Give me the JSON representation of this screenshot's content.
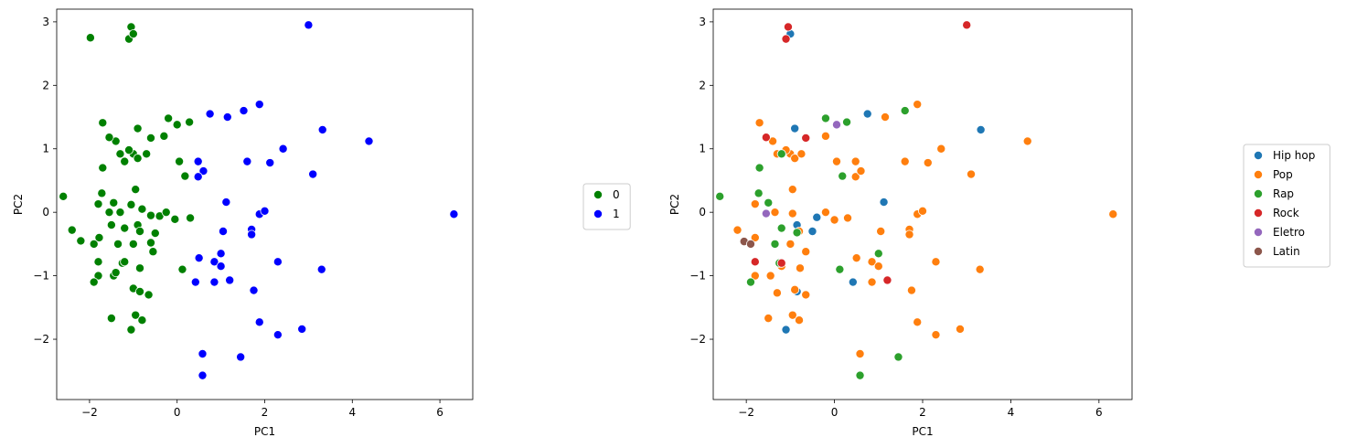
{
  "chart_data": [
    {
      "type": "scatter",
      "xlabel": "PC1",
      "ylabel": "PC2",
      "xlim": [
        -2.75,
        6.75
      ],
      "ylim": [
        -2.95,
        3.2
      ],
      "xticks": [
        -2,
        0,
        2,
        4,
        6
      ],
      "yticks": [
        -2,
        -1,
        0,
        1,
        2,
        3
      ],
      "legend": {
        "placement": "outside-right",
        "entries": [
          "0",
          "1"
        ]
      },
      "colors": {
        "0": "#008000",
        "1": "#0000ff"
      },
      "series": [
        {
          "name": "0",
          "points": [
            [
              -1.05,
              2.92
            ],
            [
              -1.98,
              2.75
            ],
            [
              -1.1,
              2.73
            ],
            [
              -1.0,
              2.81
            ],
            [
              -1.7,
              1.41
            ],
            [
              -1.4,
              1.12
            ],
            [
              -1.55,
              1.18
            ],
            [
              -0.9,
              1.32
            ],
            [
              -0.6,
              1.17
            ],
            [
              -0.3,
              1.2
            ],
            [
              -0.2,
              1.48
            ],
            [
              0.0,
              1.38
            ],
            [
              0.28,
              1.42
            ],
            [
              -1.2,
              0.8
            ],
            [
              -1.0,
              0.92
            ],
            [
              -1.1,
              0.98
            ],
            [
              -0.9,
              0.85
            ],
            [
              -1.3,
              0.92
            ],
            [
              -0.7,
              0.92
            ],
            [
              -1.7,
              0.7
            ],
            [
              0.05,
              0.8
            ],
            [
              0.18,
              0.57
            ],
            [
              -0.95,
              0.36
            ],
            [
              -1.72,
              0.3
            ],
            [
              -1.55,
              0.0
            ],
            [
              -1.45,
              0.15
            ],
            [
              -1.3,
              0.0
            ],
            [
              -1.8,
              0.13
            ],
            [
              -1.05,
              0.12
            ],
            [
              -0.8,
              0.05
            ],
            [
              -0.6,
              -0.05
            ],
            [
              -0.4,
              -0.06
            ],
            [
              -0.25,
              0.0
            ],
            [
              -0.05,
              -0.11
            ],
            [
              0.3,
              -0.09
            ],
            [
              -2.6,
              0.25
            ],
            [
              -2.4,
              -0.28
            ],
            [
              -2.2,
              -0.45
            ],
            [
              -1.9,
              -0.5
            ],
            [
              -1.78,
              -0.4
            ],
            [
              -1.5,
              -0.2
            ],
            [
              -1.2,
              -0.25
            ],
            [
              -1.0,
              -0.5
            ],
            [
              -0.9,
              -0.2
            ],
            [
              -0.85,
              -0.3
            ],
            [
              -1.35,
              -0.5
            ],
            [
              -0.6,
              -0.48
            ],
            [
              -0.5,
              -0.33
            ],
            [
              -0.55,
              -0.62
            ],
            [
              -1.25,
              -0.8
            ],
            [
              -1.45,
              -1.0
            ],
            [
              -1.4,
              -0.95
            ],
            [
              -1.2,
              -0.78
            ],
            [
              -0.85,
              -0.88
            ],
            [
              -1.8,
              -0.78
            ],
            [
              -1.8,
              -1.0
            ],
            [
              -1.9,
              -1.1
            ],
            [
              -1.0,
              -1.2
            ],
            [
              -0.85,
              -1.25
            ],
            [
              -0.65,
              -1.3
            ],
            [
              0.12,
              -0.9
            ],
            [
              -1.5,
              -1.67
            ],
            [
              -1.05,
              -1.85
            ],
            [
              -0.95,
              -1.62
            ],
            [
              -0.8,
              -1.7
            ]
          ]
        },
        {
          "name": "1",
          "points": [
            [
              3.0,
              2.95
            ],
            [
              0.75,
              1.55
            ],
            [
              1.15,
              1.5
            ],
            [
              1.52,
              1.6
            ],
            [
              1.88,
              1.7
            ],
            [
              3.32,
              1.3
            ],
            [
              4.38,
              1.12
            ],
            [
              2.42,
              1.0
            ],
            [
              2.12,
              0.78
            ],
            [
              1.6,
              0.8
            ],
            [
              3.1,
              0.6
            ],
            [
              0.6,
              0.65
            ],
            [
              0.48,
              0.8
            ],
            [
              0.48,
              0.56
            ],
            [
              1.12,
              0.16
            ],
            [
              6.32,
              -0.03
            ],
            [
              1.88,
              -0.03
            ],
            [
              2.0,
              0.02
            ],
            [
              1.05,
              -0.3
            ],
            [
              1.7,
              -0.27
            ],
            [
              1.7,
              -0.35
            ],
            [
              0.5,
              -0.72
            ],
            [
              0.85,
              -0.78
            ],
            [
              1.0,
              -0.65
            ],
            [
              1.0,
              -0.85
            ],
            [
              2.3,
              -0.78
            ],
            [
              3.3,
              -0.9
            ],
            [
              0.42,
              -1.1
            ],
            [
              0.85,
              -1.1
            ],
            [
              1.2,
              -1.07
            ],
            [
              1.75,
              -1.23
            ],
            [
              1.88,
              -1.73
            ],
            [
              2.85,
              -1.84
            ],
            [
              2.3,
              -1.93
            ],
            [
              0.58,
              -2.23
            ],
            [
              1.45,
              -2.28
            ],
            [
              0.58,
              -2.57
            ]
          ]
        }
      ]
    },
    {
      "type": "scatter",
      "xlabel": "PC1",
      "ylabel": "PC2",
      "xlim": [
        -2.75,
        6.75
      ],
      "ylim": [
        -2.95,
        3.2
      ],
      "xticks": [
        -2,
        0,
        2,
        4,
        6
      ],
      "yticks": [
        -2,
        -1,
        0,
        1,
        2,
        3
      ],
      "legend": {
        "placement": "outside-right",
        "entries": [
          "Hip hop",
          "Pop",
          "Rap",
          "Rock",
          "Eletro",
          "Latin"
        ]
      },
      "colors": {
        "Hip hop": "#1f77b4",
        "Pop": "#ff7f0e",
        "Rap": "#2ca02c",
        "Rock": "#d62728",
        "Eletro": "#9467bd",
        "Latin": "#8c564b"
      },
      "series": [
        {
          "name": "Hip hop",
          "points": [
            [
              -1.0,
              2.81
            ],
            [
              -0.9,
              1.32
            ],
            [
              0.75,
              1.55
            ],
            [
              3.32,
              1.3
            ],
            [
              1.12,
              0.16
            ],
            [
              -0.85,
              -0.2
            ],
            [
              -0.5,
              -0.3
            ],
            [
              -0.4,
              -0.08
            ],
            [
              0.42,
              -1.1
            ],
            [
              -0.85,
              -1.25
            ],
            [
              -1.1,
              -1.85
            ]
          ]
        },
        {
          "name": "Pop",
          "points": [
            [
              -1.7,
              1.41
            ],
            [
              -1.4,
              1.12
            ],
            [
              -0.2,
              1.2
            ],
            [
              1.15,
              1.5
            ],
            [
              1.88,
              1.7
            ],
            [
              4.38,
              1.12
            ],
            [
              2.42,
              1.0
            ],
            [
              -1.3,
              0.92
            ],
            [
              -1.0,
              0.92
            ],
            [
              -0.9,
              0.85
            ],
            [
              -1.1,
              0.98
            ],
            [
              -0.75,
              0.92
            ],
            [
              0.05,
              0.8
            ],
            [
              0.48,
              0.8
            ],
            [
              0.48,
              0.56
            ],
            [
              0.6,
              0.65
            ],
            [
              1.6,
              0.8
            ],
            [
              2.12,
              0.78
            ],
            [
              3.1,
              0.6
            ],
            [
              -0.95,
              0.36
            ],
            [
              -1.8,
              0.13
            ],
            [
              -1.35,
              0.0
            ],
            [
              -0.95,
              -0.02
            ],
            [
              -0.2,
              0.0
            ],
            [
              0.0,
              -0.12
            ],
            [
              0.3,
              -0.09
            ],
            [
              1.88,
              -0.03
            ],
            [
              2.0,
              0.02
            ],
            [
              6.32,
              -0.03
            ],
            [
              -2.2,
              -0.28
            ],
            [
              -1.8,
              -0.4
            ],
            [
              -1.0,
              -0.5
            ],
            [
              -1.2,
              -0.25
            ],
            [
              -0.65,
              -0.62
            ],
            [
              -0.8,
              -0.3
            ],
            [
              1.05,
              -0.3
            ],
            [
              1.7,
              -0.27
            ],
            [
              1.7,
              -0.35
            ],
            [
              -1.8,
              -1.0
            ],
            [
              -1.45,
              -1.0
            ],
            [
              -1.3,
              -1.27
            ],
            [
              -1.2,
              -0.85
            ],
            [
              -0.78,
              -0.88
            ],
            [
              -0.65,
              -1.3
            ],
            [
              -0.9,
              -1.22
            ],
            [
              0.5,
              -0.72
            ],
            [
              0.85,
              -0.78
            ],
            [
              1.0,
              -0.85
            ],
            [
              2.3,
              -0.78
            ],
            [
              3.3,
              -0.9
            ],
            [
              0.85,
              -1.1
            ],
            [
              1.75,
              -1.23
            ],
            [
              -1.5,
              -1.67
            ],
            [
              -0.95,
              -1.62
            ],
            [
              -0.8,
              -1.7
            ],
            [
              1.88,
              -1.73
            ],
            [
              2.85,
              -1.84
            ],
            [
              2.3,
              -1.93
            ],
            [
              0.58,
              -2.23
            ]
          ]
        },
        {
          "name": "Rap",
          "points": [
            [
              -0.2,
              1.48
            ],
            [
              0.28,
              1.42
            ],
            [
              1.6,
              1.6
            ],
            [
              -1.2,
              0.92
            ],
            [
              -1.7,
              0.7
            ],
            [
              0.18,
              0.57
            ],
            [
              -1.72,
              0.3
            ],
            [
              -1.5,
              0.15
            ],
            [
              -2.6,
              0.25
            ],
            [
              -1.2,
              -0.25
            ],
            [
              -1.35,
              -0.5
            ],
            [
              -0.85,
              -0.32
            ],
            [
              1.0,
              -0.65
            ],
            [
              0.12,
              -0.9
            ],
            [
              -1.9,
              -1.1
            ],
            [
              -1.25,
              -0.8
            ],
            [
              1.45,
              -2.28
            ],
            [
              0.58,
              -2.57
            ]
          ]
        },
        {
          "name": "Rock",
          "points": [
            [
              -1.05,
              2.92
            ],
            [
              -1.1,
              2.73
            ],
            [
              3.0,
              2.95
            ],
            [
              -1.55,
              1.18
            ],
            [
              -0.65,
              1.17
            ],
            [
              -1.8,
              -0.78
            ],
            [
              -1.2,
              -0.8
            ],
            [
              1.2,
              -1.07
            ]
          ]
        },
        {
          "name": "Eletro",
          "points": [
            [
              0.05,
              1.38
            ],
            [
              -1.55,
              -0.02
            ]
          ]
        },
        {
          "name": "Latin",
          "points": [
            [
              -2.05,
              -0.46
            ],
            [
              -1.9,
              -0.5
            ]
          ]
        }
      ]
    }
  ]
}
